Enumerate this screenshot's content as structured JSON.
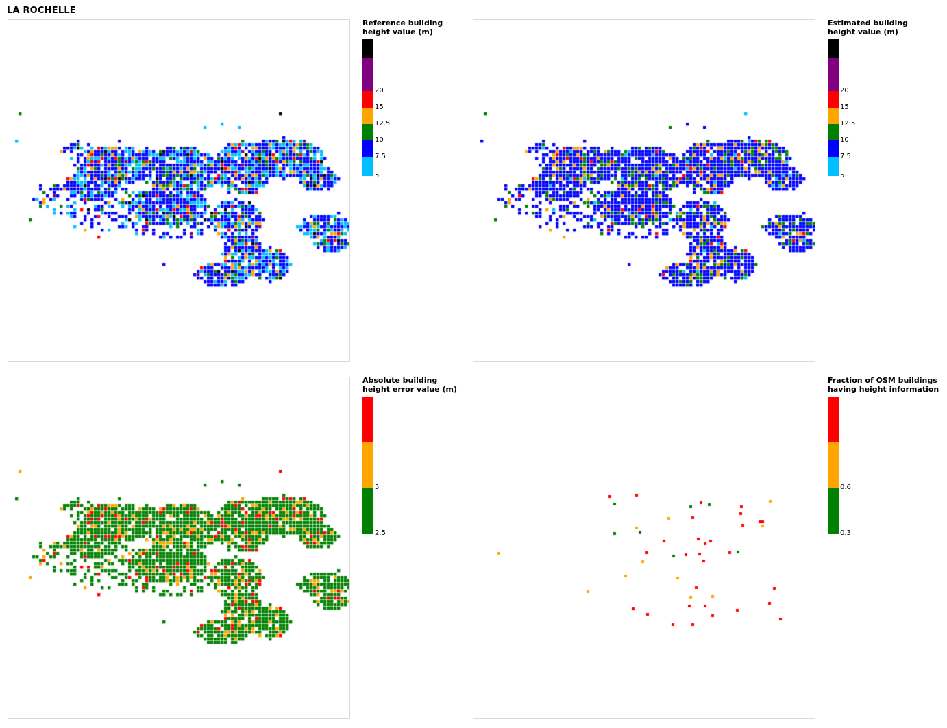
{
  "page_title": "LA ROCHELLE",
  "panels": [
    {
      "id": "reference",
      "legend_title": "Reference building\nheight value (m)",
      "legend": [
        {
          "color": "#000000",
          "label": ""
        },
        {
          "color": "#800080",
          "label": "20"
        },
        {
          "color": "#ff0000",
          "label": "15"
        },
        {
          "color": "#ffa500",
          "label": "12.5"
        },
        {
          "color": "#008000",
          "label": "10"
        },
        {
          "color": "#0000ff",
          "label": "7.5"
        },
        {
          "color": "#00bfff",
          "label": "5"
        }
      ]
    },
    {
      "id": "estimated",
      "legend_title": "Estimated building\nheight value (m)",
      "legend": [
        {
          "color": "#000000",
          "label": ""
        },
        {
          "color": "#800080",
          "label": "20"
        },
        {
          "color": "#ff0000",
          "label": "15"
        },
        {
          "color": "#ffa500",
          "label": "12.5"
        },
        {
          "color": "#008000",
          "label": "10"
        },
        {
          "color": "#0000ff",
          "label": "7.5"
        },
        {
          "color": "#00bfff",
          "label": "5"
        }
      ]
    },
    {
      "id": "error",
      "legend_title": "Absolute building\nheight error value (m)",
      "legend": [
        {
          "color": "#ff0000",
          "label": ""
        },
        {
          "color": "#ffa500",
          "label": "5"
        },
        {
          "color": "#008000",
          "label": "2.5"
        }
      ]
    },
    {
      "id": "osm_fraction",
      "legend_title": "Fraction of OSM buildings\nhaving height information",
      "legend": [
        {
          "color": "#ff0000",
          "label": ""
        },
        {
          "color": "#ffa500",
          "label": "0.6"
        },
        {
          "color": "#008000",
          "label": "0.3"
        }
      ]
    }
  ]
}
